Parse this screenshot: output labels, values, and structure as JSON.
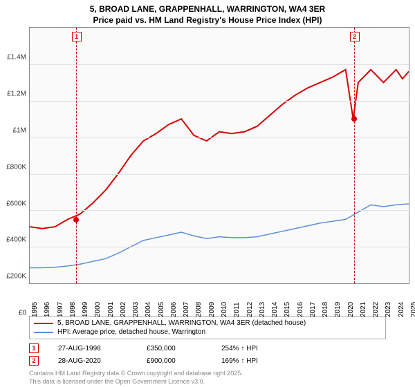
{
  "title_line1": "5, BROAD LANE, GRAPPENHALL, WARRINGTON, WA4 3ER",
  "title_line2": "Price paid vs. HM Land Registry's House Price Index (HPI)",
  "chart": {
    "type": "line",
    "background_color": "#fafafa",
    "grid_color": "#e0e0e0",
    "border_color": "#888888",
    "x_years": [
      1995,
      1996,
      1997,
      1998,
      1999,
      2000,
      2001,
      2002,
      2003,
      2004,
      2005,
      2006,
      2007,
      2008,
      2009,
      2010,
      2011,
      2012,
      2013,
      2014,
      2015,
      2016,
      2017,
      2018,
      2019,
      2020,
      2021,
      2022,
      2023,
      2024,
      2025
    ],
    "ylim": [
      0,
      1400000
    ],
    "yticks": [
      0,
      200000,
      400000,
      600000,
      800000,
      1000000,
      1200000,
      1400000
    ],
    "ytick_labels": [
      "£0",
      "£200K",
      "£400K",
      "£600K",
      "£800K",
      "£1M",
      "£1.2M",
      "£1.4M"
    ],
    "label_fontsize": 10,
    "series": [
      {
        "name": "property",
        "color": "#d60000",
        "width": 2,
        "points": [
          [
            1995,
            310000
          ],
          [
            1996,
            300000
          ],
          [
            1997,
            310000
          ],
          [
            1998,
            350000
          ],
          [
            1999,
            380000
          ],
          [
            2000,
            440000
          ],
          [
            2001,
            510000
          ],
          [
            2002,
            600000
          ],
          [
            2003,
            700000
          ],
          [
            2004,
            780000
          ],
          [
            2005,
            820000
          ],
          [
            2006,
            870000
          ],
          [
            2007,
            900000
          ],
          [
            2008,
            810000
          ],
          [
            2009,
            780000
          ],
          [
            2010,
            830000
          ],
          [
            2011,
            820000
          ],
          [
            2012,
            830000
          ],
          [
            2013,
            860000
          ],
          [
            2014,
            920000
          ],
          [
            2015,
            980000
          ],
          [
            2016,
            1030000
          ],
          [
            2017,
            1070000
          ],
          [
            2018,
            1100000
          ],
          [
            2019,
            1130000
          ],
          [
            2020,
            1170000
          ],
          [
            2020.6,
            900000
          ],
          [
            2021,
            1100000
          ],
          [
            2022,
            1170000
          ],
          [
            2023,
            1100000
          ],
          [
            2024,
            1170000
          ],
          [
            2024.5,
            1120000
          ],
          [
            2025,
            1160000
          ]
        ]
      },
      {
        "name": "hpi",
        "color": "#5b8fd6",
        "width": 1.5,
        "points": [
          [
            1995,
            85000
          ],
          [
            1996,
            85000
          ],
          [
            1997,
            88000
          ],
          [
            1998,
            95000
          ],
          [
            1999,
            105000
          ],
          [
            2000,
            120000
          ],
          [
            2001,
            135000
          ],
          [
            2002,
            165000
          ],
          [
            2003,
            200000
          ],
          [
            2004,
            235000
          ],
          [
            2005,
            250000
          ],
          [
            2006,
            265000
          ],
          [
            2007,
            280000
          ],
          [
            2008,
            260000
          ],
          [
            2009,
            245000
          ],
          [
            2010,
            255000
          ],
          [
            2011,
            250000
          ],
          [
            2012,
            250000
          ],
          [
            2013,
            255000
          ],
          [
            2014,
            270000
          ],
          [
            2015,
            285000
          ],
          [
            2016,
            300000
          ],
          [
            2017,
            315000
          ],
          [
            2018,
            330000
          ],
          [
            2019,
            340000
          ],
          [
            2020,
            350000
          ],
          [
            2021,
            390000
          ],
          [
            2022,
            430000
          ],
          [
            2023,
            420000
          ],
          [
            2024,
            430000
          ],
          [
            2025,
            435000
          ]
        ]
      }
    ],
    "markers": [
      {
        "id": "1",
        "x": 1998.65,
        "price": 350000,
        "color": "#d60000"
      },
      {
        "id": "2",
        "x": 2020.65,
        "price": 900000,
        "color": "#d60000"
      }
    ]
  },
  "legend": [
    {
      "color": "#d60000",
      "label": "5, BROAD LANE, GRAPPENHALL, WARRINGTON, WA4 3ER (detached house)"
    },
    {
      "color": "#5b8fd6",
      "label": "HPI: Average price, detached house, Warrington"
    }
  ],
  "transactions": [
    {
      "id": "1",
      "color": "#d60000",
      "date": "27-AUG-1998",
      "price": "£350,000",
      "delta": "254% ↑ HPI"
    },
    {
      "id": "2",
      "color": "#d60000",
      "date": "28-AUG-2020",
      "price": "£900,000",
      "delta": "169% ↑ HPI"
    }
  ],
  "footer_line1": "Contains HM Land Registry data © Crown copyright and database right 2025.",
  "footer_line2": "This data is licensed under the Open Government Licence v3.0."
}
